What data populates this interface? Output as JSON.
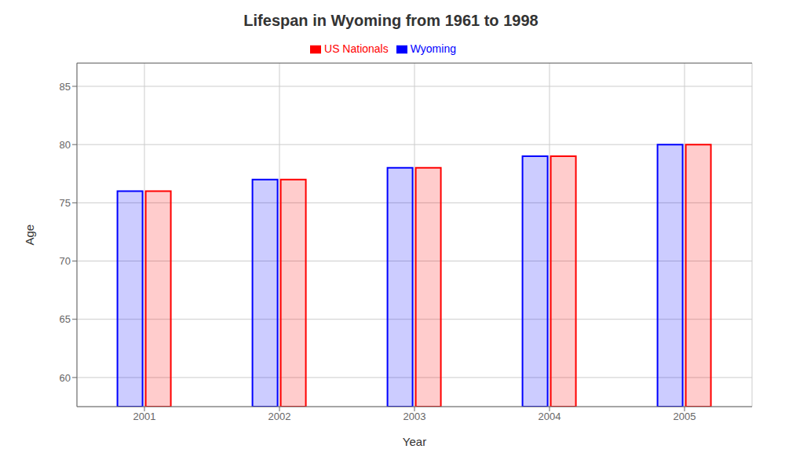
{
  "chart_data": {
    "type": "bar",
    "title": "Lifespan in Wyoming from 1961 to 1998",
    "xlabel": "Year",
    "ylabel": "Age",
    "categories": [
      "2001",
      "2002",
      "2003",
      "2004",
      "2005"
    ],
    "series": [
      {
        "name": "Wyoming",
        "color": "#0000ff",
        "values": [
          76,
          77,
          78,
          79,
          80
        ]
      },
      {
        "name": "US Nationals",
        "color": "#ff0000",
        "values": [
          76,
          77,
          78,
          79,
          80
        ]
      }
    ],
    "ylim": [
      57.5,
      87
    ],
    "yticks": [
      60,
      65,
      70,
      75,
      80,
      85
    ],
    "grid": true,
    "legend": "top"
  }
}
